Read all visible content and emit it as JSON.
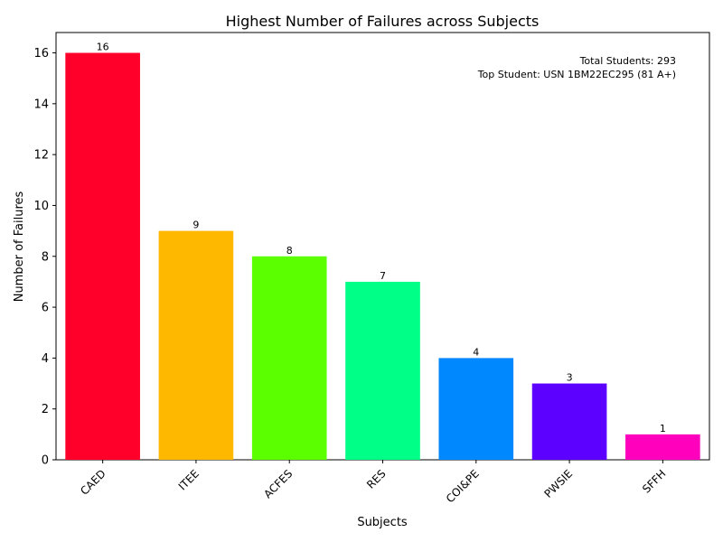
{
  "chart_data": {
    "type": "bar",
    "title": "Highest Number of Failures across Subjects",
    "xlabel": "Subjects",
    "ylabel": "Number of Failures",
    "categories": [
      "CAED",
      "ITEE",
      "ACFES",
      "RES",
      "COI&PE",
      "PWSIE",
      "SFFH"
    ],
    "values": [
      16,
      9,
      8,
      7,
      4,
      3,
      1
    ],
    "colors": [
      "#ff002b",
      "#ffb800",
      "#5cff00",
      "#00ff87",
      "#0088ff",
      "#5c00ff",
      "#ff00bc"
    ],
    "ylim": [
      0,
      16.8
    ],
    "yticks": [
      0,
      2,
      4,
      6,
      8,
      10,
      12,
      14,
      16
    ],
    "grid": false,
    "annotations": [
      "Total Students: 293",
      "Top Student: USN 1BM22EC295 (81 A+)"
    ]
  }
}
